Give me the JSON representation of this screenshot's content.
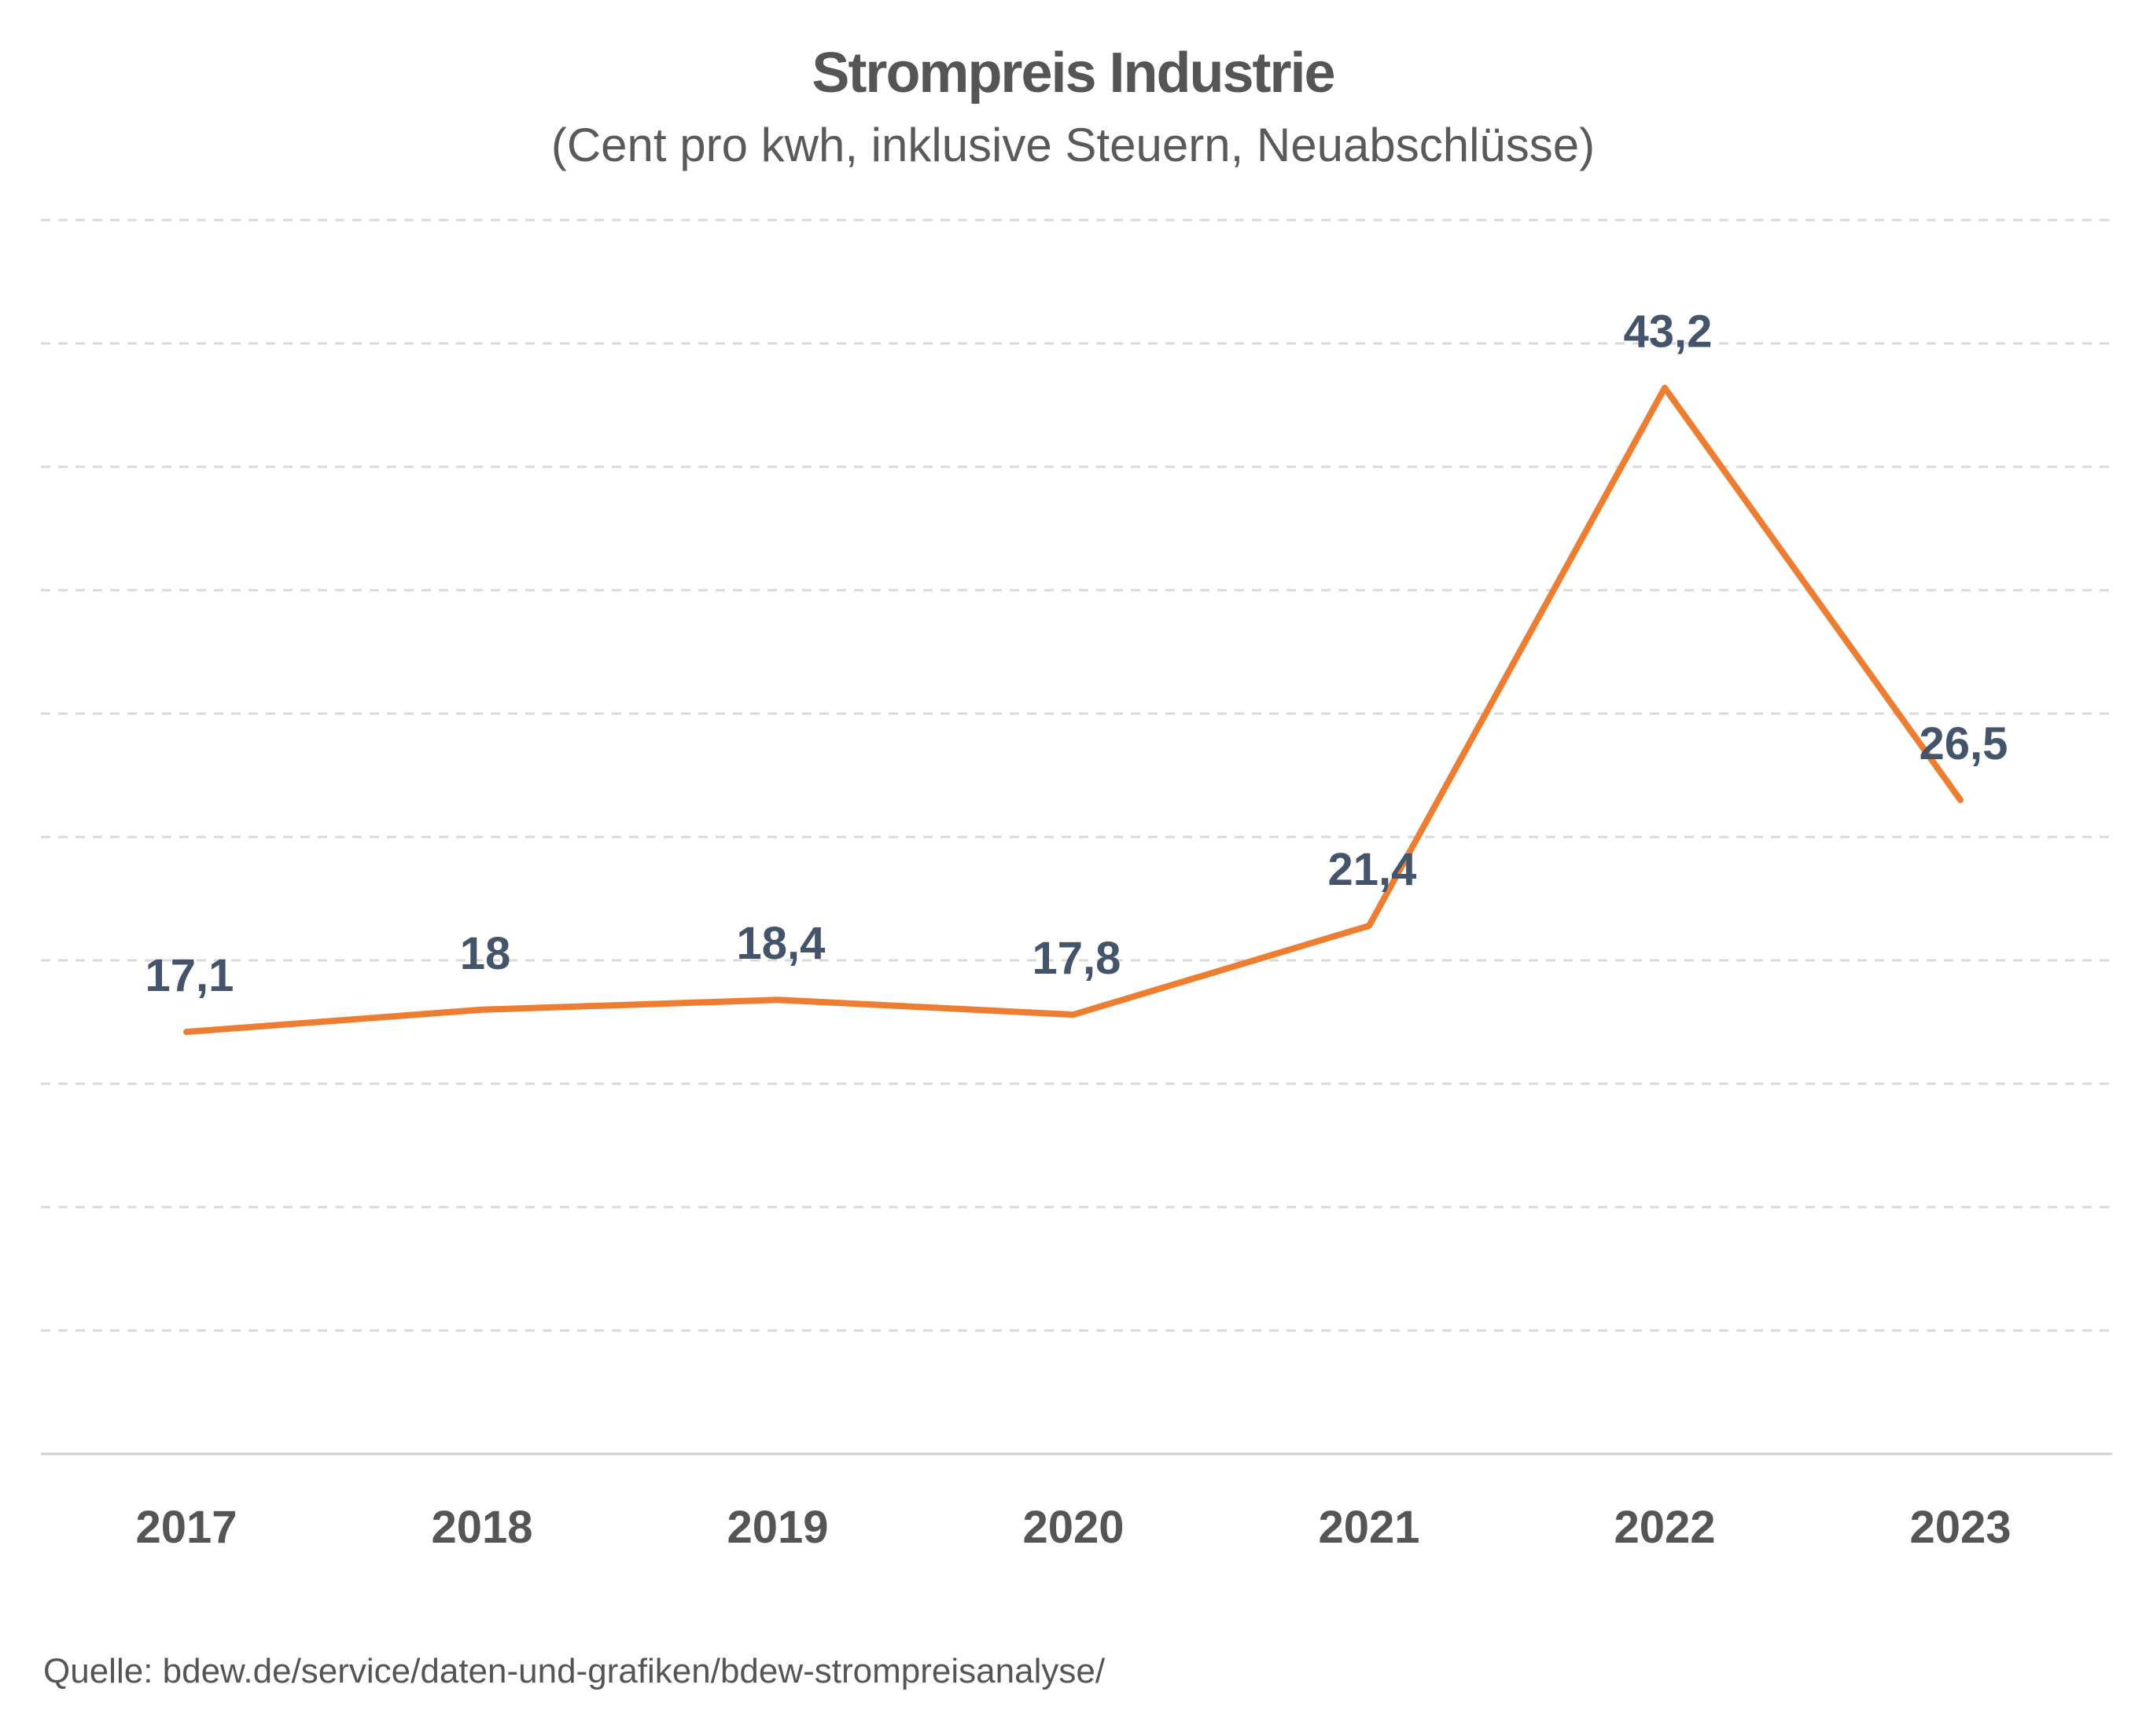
{
  "chart_data": {
    "type": "line",
    "title": "Strompreis Industrie",
    "subtitle": "(Cent pro kwh, inklusive Steuern, Neuabschlüsse)",
    "categories": [
      "2017",
      "2018",
      "2019",
      "2020",
      "2021",
      "2022",
      "2023"
    ],
    "series": [
      {
        "values": [
          17.1,
          18,
          18.4,
          17.8,
          21.4,
          43.2,
          26.5
        ],
        "labels": [
          "17,1",
          "18",
          "18,4",
          "17,8",
          "21,4",
          "43,2",
          "26,5"
        ],
        "color": "#ED7D31"
      }
    ],
    "ylim": [
      0,
      50
    ],
    "grid": true,
    "legend": "none",
    "label_color": "#44546A",
    "axis_label_color": "#555555",
    "grid_color": "#D9D9D9"
  },
  "source": "Quelle: bdew.de/service/daten-und-grafiken/bdew-strompreisanalyse/"
}
